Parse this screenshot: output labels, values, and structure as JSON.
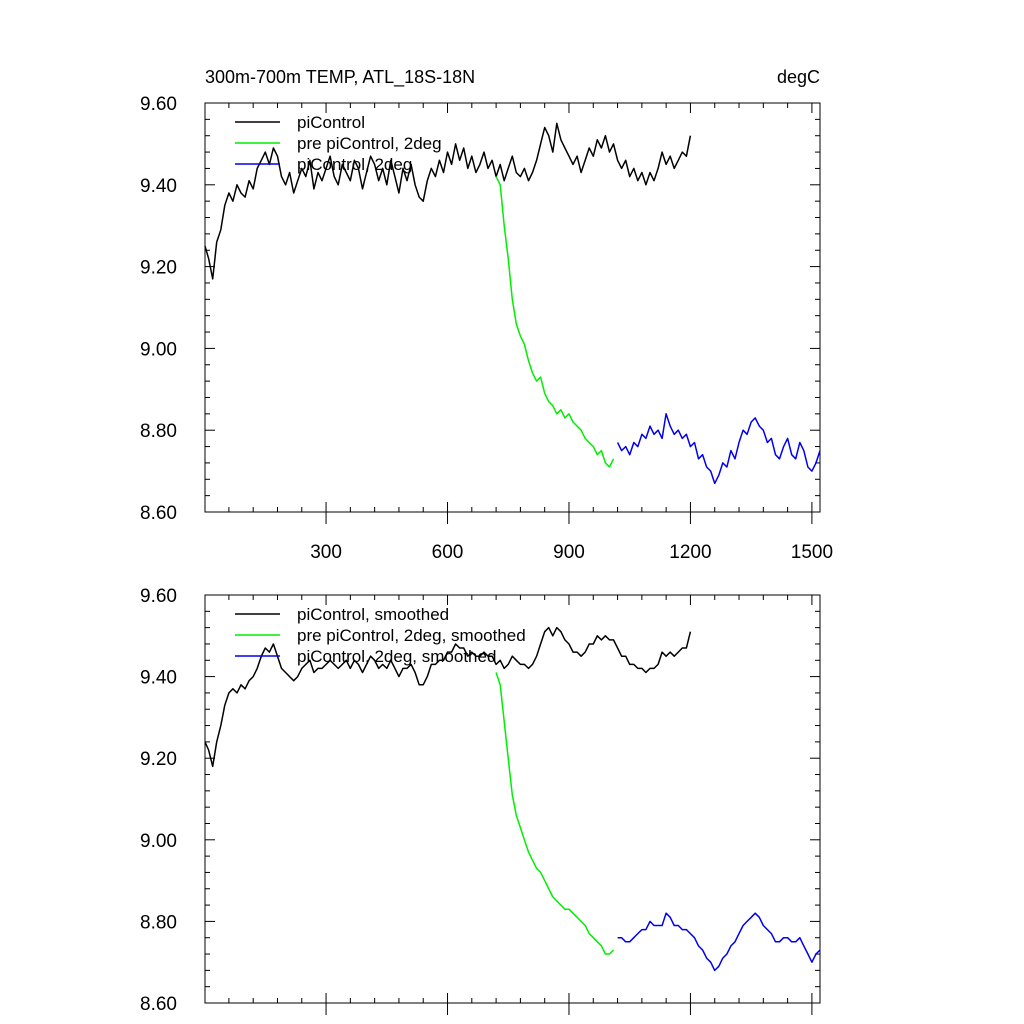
{
  "chart_data": [
    {
      "type": "line",
      "title": "300m-700m TEMP, ATL_18S-18N",
      "units": "degC",
      "xlim": [
        1,
        1520
      ],
      "ylim": [
        8.6,
        9.6
      ],
      "x_ticks": [
        300,
        600,
        900,
        1200,
        1500
      ],
      "x_tick_labels": [
        "300",
        "600",
        "900",
        "1200",
        "1500"
      ],
      "y_ticks": [
        8.6,
        8.8,
        9.0,
        9.2,
        9.4,
        9.6
      ],
      "y_tick_labels": [
        "8.60",
        "8.80",
        "9.00",
        "9.20",
        "9.40",
        "9.60"
      ],
      "legend_position": "top-left",
      "series": [
        {
          "name": "piControl",
          "color": "#000000",
          "x": [
            1,
            10,
            20,
            30,
            40,
            50,
            60,
            70,
            80,
            90,
            100,
            110,
            120,
            130,
            140,
            150,
            160,
            170,
            180,
            190,
            200,
            210,
            220,
            230,
            240,
            250,
            260,
            270,
            280,
            290,
            300,
            310,
            320,
            330,
            340,
            350,
            360,
            370,
            380,
            390,
            400,
            410,
            420,
            430,
            440,
            450,
            460,
            470,
            480,
            490,
            500,
            510,
            520,
            530,
            540,
            550,
            560,
            570,
            580,
            590,
            600,
            610,
            620,
            630,
            640,
            650,
            660,
            670,
            680,
            690,
            700,
            710,
            720,
            730,
            740,
            750,
            760,
            770,
            780,
            790,
            800,
            810,
            820,
            830,
            840,
            850,
            860,
            870,
            880,
            890,
            900,
            910,
            920,
            930,
            940,
            950,
            960,
            970,
            980,
            990,
            1000,
            1010,
            1020,
            1030,
            1040,
            1050,
            1060,
            1070,
            1080,
            1090,
            1100,
            1110,
            1120,
            1130,
            1140,
            1150,
            1160,
            1170,
            1180,
            1190,
            1200
          ],
          "y": [
            9.25,
            9.22,
            9.17,
            9.26,
            9.29,
            9.35,
            9.38,
            9.36,
            9.4,
            9.38,
            9.37,
            9.41,
            9.39,
            9.44,
            9.46,
            9.48,
            9.45,
            9.49,
            9.47,
            9.42,
            9.4,
            9.43,
            9.38,
            9.41,
            9.44,
            9.42,
            9.46,
            9.39,
            9.43,
            9.41,
            9.44,
            9.47,
            9.42,
            9.4,
            9.45,
            9.43,
            9.41,
            9.46,
            9.44,
            9.39,
            9.43,
            9.47,
            9.45,
            9.41,
            9.44,
            9.4,
            9.46,
            9.42,
            9.38,
            9.44,
            9.41,
            9.45,
            9.4,
            9.37,
            9.36,
            9.41,
            9.44,
            9.42,
            9.46,
            9.43,
            9.48,
            9.45,
            9.5,
            9.46,
            9.49,
            9.44,
            9.47,
            9.43,
            9.45,
            9.48,
            9.44,
            9.46,
            9.42,
            9.45,
            9.41,
            9.44,
            9.47,
            9.43,
            9.42,
            9.44,
            9.41,
            9.43,
            9.46,
            9.5,
            9.54,
            9.52,
            9.48,
            9.55,
            9.51,
            9.49,
            9.47,
            9.45,
            9.47,
            9.43,
            9.46,
            9.49,
            9.47,
            9.51,
            9.49,
            9.52,
            9.48,
            9.5,
            9.46,
            9.44,
            9.46,
            9.42,
            9.44,
            9.41,
            9.43,
            9.4,
            9.43,
            9.41,
            9.44,
            9.48,
            9.45,
            9.47,
            9.44,
            9.46,
            9.48,
            9.47,
            9.52
          ]
        },
        {
          "name": "pre piControl, 2deg",
          "color": "#00ee00",
          "x": [
            720,
            730,
            740,
            750,
            760,
            770,
            780,
            790,
            800,
            810,
            820,
            830,
            840,
            850,
            860,
            870,
            880,
            890,
            900,
            910,
            920,
            930,
            940,
            950,
            960,
            970,
            980,
            990,
            1000,
            1010
          ],
          "y": [
            9.42,
            9.4,
            9.3,
            9.22,
            9.12,
            9.06,
            9.03,
            9.01,
            8.97,
            8.94,
            8.92,
            8.93,
            8.89,
            8.87,
            8.86,
            8.84,
            8.85,
            8.83,
            8.84,
            8.82,
            8.81,
            8.8,
            8.78,
            8.77,
            8.76,
            8.74,
            8.75,
            8.72,
            8.71,
            8.73
          ]
        },
        {
          "name": "piControl, 2deg",
          "color": "#0000ee",
          "x": [
            1020,
            1030,
            1040,
            1050,
            1060,
            1070,
            1080,
            1090,
            1100,
            1110,
            1120,
            1130,
            1140,
            1150,
            1160,
            1170,
            1180,
            1190,
            1200,
            1210,
            1220,
            1230,
            1240,
            1250,
            1260,
            1270,
            1280,
            1290,
            1300,
            1310,
            1320,
            1330,
            1340,
            1350,
            1360,
            1370,
            1380,
            1390,
            1400,
            1410,
            1420,
            1430,
            1440,
            1450,
            1460,
            1470,
            1480,
            1490,
            1500,
            1510,
            1520
          ],
          "y": [
            8.77,
            8.75,
            8.76,
            8.74,
            8.77,
            8.76,
            8.79,
            8.78,
            8.81,
            8.79,
            8.8,
            8.78,
            8.84,
            8.81,
            8.79,
            8.8,
            8.78,
            8.79,
            8.76,
            8.77,
            8.73,
            8.74,
            8.71,
            8.7,
            8.67,
            8.69,
            8.72,
            8.71,
            8.75,
            8.73,
            8.77,
            8.8,
            8.79,
            8.82,
            8.83,
            8.81,
            8.8,
            8.77,
            8.78,
            8.74,
            8.73,
            8.76,
            8.78,
            8.74,
            8.73,
            8.77,
            8.75,
            8.71,
            8.7,
            8.72,
            8.75
          ]
        }
      ]
    },
    {
      "type": "line",
      "title": "",
      "xlim": [
        1,
        1520
      ],
      "ylim": [
        8.6,
        9.6
      ],
      "x_ticks": [
        300,
        600,
        900,
        1200,
        1500
      ],
      "y_ticks": [
        8.6,
        8.8,
        9.0,
        9.2,
        9.4,
        9.6
      ],
      "y_tick_labels": [
        "8.60",
        "8.80",
        "9.00",
        "9.20",
        "9.40",
        "9.60"
      ],
      "legend_position": "top-left",
      "series": [
        {
          "name": "piControl, smoothed",
          "color": "#000000",
          "x": [
            1,
            10,
            20,
            30,
            40,
            50,
            60,
            70,
            80,
            90,
            100,
            110,
            120,
            130,
            140,
            150,
            160,
            170,
            180,
            190,
            200,
            210,
            220,
            230,
            240,
            250,
            260,
            270,
            280,
            290,
            300,
            310,
            320,
            330,
            340,
            350,
            360,
            370,
            380,
            390,
            400,
            410,
            420,
            430,
            440,
            450,
            460,
            470,
            480,
            490,
            500,
            510,
            520,
            530,
            540,
            550,
            560,
            570,
            580,
            590,
            600,
            610,
            620,
            630,
            640,
            650,
            660,
            670,
            680,
            690,
            700,
            710,
            720,
            730,
            740,
            750,
            760,
            770,
            780,
            790,
            800,
            810,
            820,
            830,
            840,
            850,
            860,
            870,
            880,
            890,
            900,
            910,
            920,
            930,
            940,
            950,
            960,
            970,
            980,
            990,
            1000,
            1010,
            1020,
            1030,
            1040,
            1050,
            1060,
            1070,
            1080,
            1090,
            1100,
            1110,
            1120,
            1130,
            1140,
            1150,
            1160,
            1170,
            1180,
            1190,
            1200
          ],
          "y": [
            9.24,
            9.22,
            9.18,
            9.24,
            9.28,
            9.33,
            9.36,
            9.37,
            9.36,
            9.38,
            9.37,
            9.39,
            9.4,
            9.42,
            9.45,
            9.47,
            9.46,
            9.48,
            9.45,
            9.42,
            9.41,
            9.4,
            9.39,
            9.4,
            9.42,
            9.43,
            9.44,
            9.41,
            9.42,
            9.42,
            9.43,
            9.44,
            9.43,
            9.42,
            9.43,
            9.44,
            9.42,
            9.44,
            9.43,
            9.41,
            9.43,
            9.45,
            9.44,
            9.42,
            9.43,
            9.42,
            9.44,
            9.42,
            9.4,
            9.42,
            9.42,
            9.43,
            9.41,
            9.38,
            9.38,
            9.4,
            9.43,
            9.43,
            9.44,
            9.44,
            9.46,
            9.46,
            9.48,
            9.47,
            9.47,
            9.45,
            9.46,
            9.45,
            9.45,
            9.46,
            9.45,
            9.45,
            9.43,
            9.44,
            9.42,
            9.43,
            9.45,
            9.44,
            9.43,
            9.43,
            9.42,
            9.43,
            9.45,
            9.48,
            9.51,
            9.52,
            9.5,
            9.52,
            9.51,
            9.49,
            9.48,
            9.46,
            9.46,
            9.45,
            9.46,
            9.48,
            9.48,
            9.5,
            9.49,
            9.5,
            9.49,
            9.49,
            9.47,
            9.45,
            9.45,
            9.43,
            9.43,
            9.42,
            9.42,
            9.41,
            9.42,
            9.42,
            9.43,
            9.46,
            9.45,
            9.46,
            9.45,
            9.46,
            9.47,
            9.47,
            9.51
          ]
        },
        {
          "name": "pre piControl, 2deg, smoothed",
          "color": "#00ee00",
          "x": [
            720,
            730,
            740,
            750,
            760,
            770,
            780,
            790,
            800,
            810,
            820,
            830,
            840,
            850,
            860,
            870,
            880,
            890,
            900,
            910,
            920,
            930,
            940,
            950,
            960,
            970,
            980,
            990,
            1000,
            1010
          ],
          "y": [
            9.41,
            9.38,
            9.29,
            9.2,
            9.11,
            9.06,
            9.03,
            9.0,
            8.97,
            8.95,
            8.93,
            8.92,
            8.9,
            8.88,
            8.86,
            8.85,
            8.84,
            8.83,
            8.83,
            8.82,
            8.81,
            8.8,
            8.79,
            8.77,
            8.76,
            8.75,
            8.74,
            8.72,
            8.72,
            8.73
          ]
        },
        {
          "name": "piControl, 2deg, smoothed",
          "color": "#0000ee",
          "x": [
            1020,
            1030,
            1040,
            1050,
            1060,
            1070,
            1080,
            1090,
            1100,
            1110,
            1120,
            1130,
            1140,
            1150,
            1160,
            1170,
            1180,
            1190,
            1200,
            1210,
            1220,
            1230,
            1240,
            1250,
            1260,
            1270,
            1280,
            1290,
            1300,
            1310,
            1320,
            1330,
            1340,
            1350,
            1360,
            1370,
            1380,
            1390,
            1400,
            1410,
            1420,
            1430,
            1440,
            1450,
            1460,
            1470,
            1480,
            1490,
            1500,
            1510,
            1520
          ],
          "y": [
            8.76,
            8.76,
            8.75,
            8.75,
            8.76,
            8.77,
            8.78,
            8.78,
            8.8,
            8.79,
            8.79,
            8.79,
            8.82,
            8.81,
            8.79,
            8.79,
            8.78,
            8.78,
            8.77,
            8.76,
            8.74,
            8.73,
            8.71,
            8.7,
            8.68,
            8.69,
            8.71,
            8.72,
            8.74,
            8.75,
            8.77,
            8.79,
            8.8,
            8.81,
            8.82,
            8.81,
            8.79,
            8.78,
            8.77,
            8.75,
            8.75,
            8.76,
            8.76,
            8.75,
            8.75,
            8.76,
            8.74,
            8.72,
            8.7,
            8.72,
            8.73
          ]
        }
      ]
    }
  ]
}
